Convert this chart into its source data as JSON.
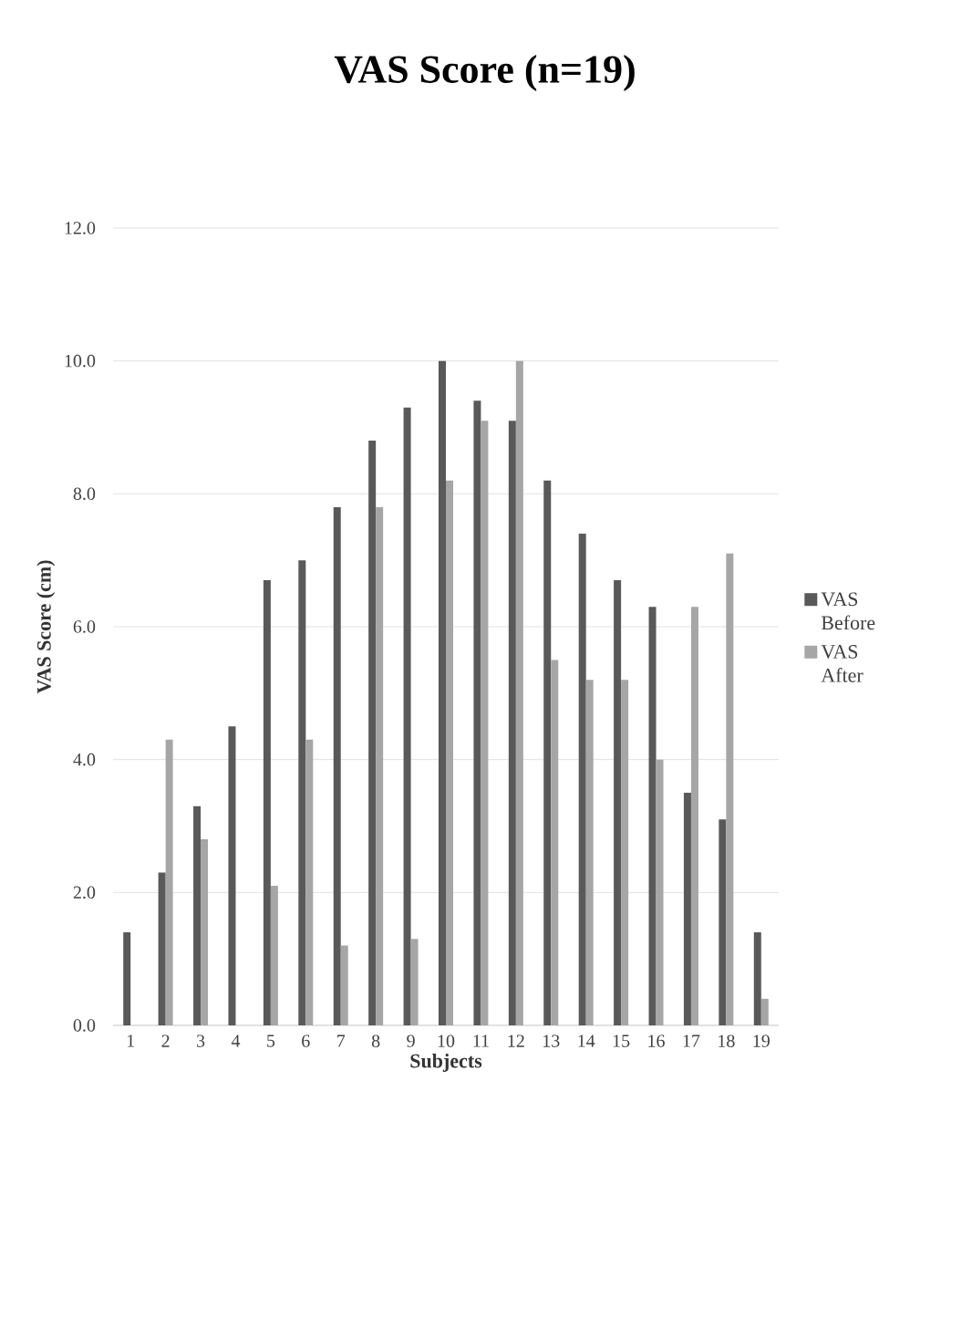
{
  "chart_data": {
    "type": "bar",
    "title": "VAS Score (n=19)",
    "xlabel": "Subjects",
    "ylabel": "VAS Score (cm)",
    "categories": [
      "1",
      "2",
      "3",
      "4",
      "5",
      "6",
      "7",
      "8",
      "9",
      "10",
      "11",
      "12",
      "13",
      "14",
      "15",
      "16",
      "17",
      "18",
      "19"
    ],
    "series": [
      {
        "name": "VAS Before",
        "color": "#595959",
        "values": [
          1.4,
          2.3,
          3.3,
          4.5,
          6.7,
          7.0,
          7.8,
          8.8,
          9.3,
          10.0,
          9.4,
          9.1,
          8.2,
          7.4,
          6.7,
          6.3,
          3.5,
          3.1,
          1.4
        ]
      },
      {
        "name": "VAS After",
        "color": "#a6a6a6",
        "values": [
          0,
          4.3,
          2.8,
          0,
          2.1,
          4.3,
          1.2,
          7.8,
          1.3,
          8.2,
          9.1,
          10.0,
          5.5,
          5.2,
          5.2,
          4.0,
          6.3,
          7.1,
          0.4
        ]
      }
    ],
    "ylim": [
      0,
      12
    ],
    "yticks": [
      {
        "value": 0,
        "label": "0.0"
      },
      {
        "value": 2,
        "label": "2.0"
      },
      {
        "value": 4,
        "label": "4.0"
      },
      {
        "value": 6,
        "label": "6.0"
      },
      {
        "value": 8,
        "label": "8.0"
      },
      {
        "value": 10,
        "label": "10.0"
      },
      {
        "value": 12,
        "label": "12.0"
      }
    ],
    "grid": "y",
    "legend": "right"
  }
}
